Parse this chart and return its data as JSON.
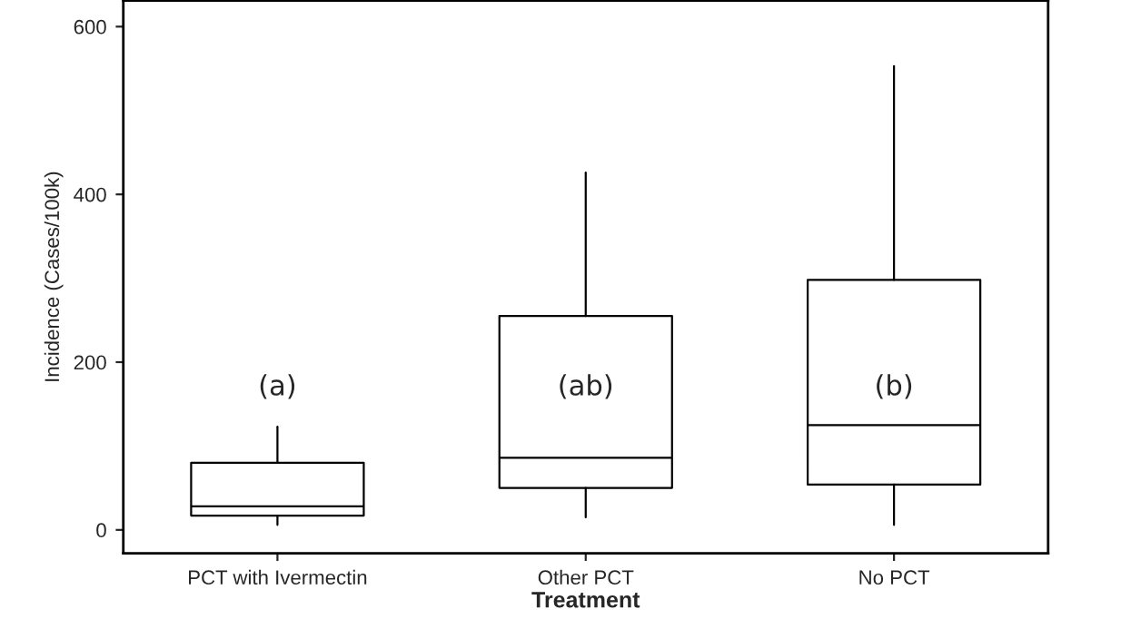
{
  "chart_data": {
    "type": "box",
    "xlabel": "Treatment",
    "ylabel": "Incidence (Cases/100k)",
    "categories": [
      "PCT with Ivermectin",
      "Other PCT",
      "No PCT"
    ],
    "boxes": [
      {
        "low": 6,
        "q1": 17,
        "median": 28,
        "q3": 80,
        "high": 123
      },
      {
        "low": 15,
        "q1": 50,
        "median": 86,
        "q3": 255,
        "high": 426
      },
      {
        "low": 6,
        "q1": 54,
        "median": 125,
        "q3": 298,
        "high": 553
      }
    ],
    "ylim": [
      -28,
      631
    ],
    "yticks": [
      0,
      200,
      400,
      600
    ],
    "grid": false,
    "annotations": [
      "(a)",
      "(ab)",
      "(b)"
    ]
  }
}
